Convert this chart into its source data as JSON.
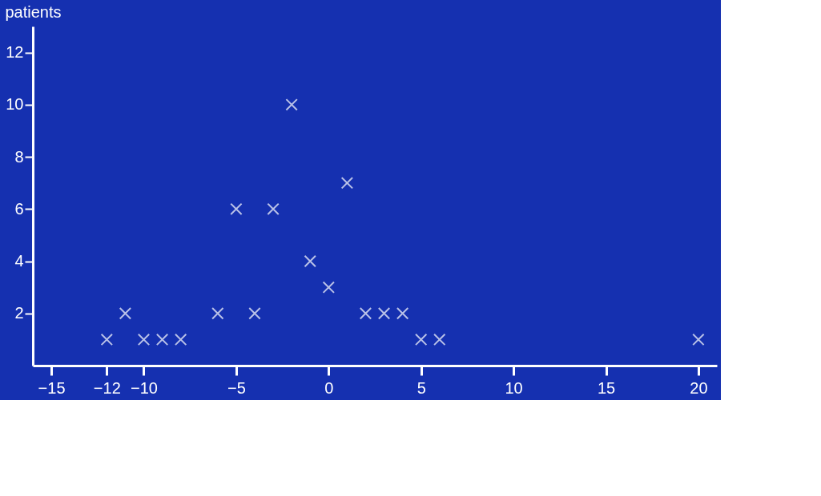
{
  "chart_data": {
    "type": "scatter",
    "ylabel": "patients",
    "x": [
      -12,
      -11,
      -10,
      -9,
      -8,
      -6,
      -4,
      -5,
      -3,
      -2,
      -1,
      0,
      1,
      2,
      3,
      4,
      5,
      6,
      20
    ],
    "values": [
      1,
      2,
      1,
      1,
      1,
      2,
      2,
      6,
      6,
      10,
      4,
      3,
      7,
      2,
      2,
      2,
      1,
      1,
      1
    ],
    "color": "#ffffff",
    "marker": "cross",
    "xlim": [
      -16,
      21
    ],
    "xticks": [
      -15,
      -12,
      -10,
      -5,
      0,
      5,
      10,
      15,
      20
    ],
    "ylim": [
      0,
      13
    ],
    "yticks": [
      2,
      4,
      6,
      8,
      10,
      12
    ],
    "grid": false
  }
}
